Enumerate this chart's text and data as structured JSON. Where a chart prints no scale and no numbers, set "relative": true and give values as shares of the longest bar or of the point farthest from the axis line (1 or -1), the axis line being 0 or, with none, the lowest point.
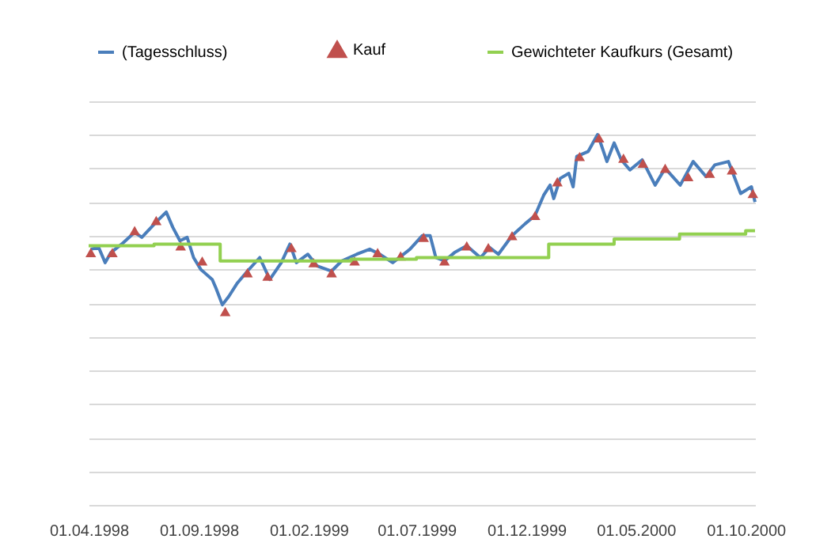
{
  "chart_data": {
    "type": "line",
    "relative": true,
    "grid": "y",
    "legend": "top",
    "xlim": [
      "1998-04-01",
      "2000-10-14"
    ],
    "xticks": [
      {
        "value": "1998-04-01",
        "label": "01.04.1998"
      },
      {
        "value": "1998-09-01",
        "label": "01.09.1998"
      },
      {
        "value": "1999-02-01",
        "label": "01.02.1999"
      },
      {
        "value": "1999-07-01",
        "label": "01.07.1999"
      },
      {
        "value": "1999-12-01",
        "label": "01.12.1999"
      },
      {
        "value": "2000-05-01",
        "label": "01.05.2000"
      },
      {
        "value": "2000-10-01",
        "label": "01.10.2000"
      }
    ],
    "series": [
      {
        "name": "(Tagesschluss)",
        "color": "#4a7ebb",
        "line_style": "solid",
        "marker": "none",
        "x": [
          "1998-04-04",
          "1998-04-15",
          "1998-04-24",
          "1998-05-02",
          "1998-05-17",
          "1998-06-04",
          "1998-06-14",
          "1998-07-06",
          "1998-07-18",
          "1998-07-27",
          "1998-08-06",
          "1998-08-16",
          "1998-08-25",
          "1998-09-04",
          "1998-09-20",
          "1998-09-25",
          "1998-10-04",
          "1998-10-13",
          "1998-10-25",
          "1998-11-08",
          "1998-11-25",
          "1998-12-09",
          "1998-12-25",
          "1999-01-06",
          "1999-01-15",
          "1999-01-31",
          "1999-02-13",
          "1999-03-05",
          "1999-03-19",
          "1999-04-09",
          "1999-04-27",
          "1999-05-11",
          "1999-05-29",
          "1999-06-22",
          "1999-07-09",
          "1999-07-20",
          "1999-07-28",
          "1999-08-09",
          "1999-08-23",
          "1999-09-09",
          "1999-09-28",
          "1999-10-11",
          "1999-10-23",
          "1999-11-11",
          "1999-11-29",
          "1999-12-13",
          "1999-12-25",
          "2000-01-03",
          "2000-01-08",
          "2000-01-17",
          "2000-01-29",
          "2000-02-04",
          "2000-02-09",
          "2000-02-25",
          "2000-03-09",
          "2000-03-14",
          "2000-03-22",
          "2000-04-01",
          "2000-04-11",
          "2000-04-23",
          "2000-05-10",
          "2000-05-28",
          "2000-06-11",
          "2000-07-02",
          "2000-07-20",
          "2000-08-07",
          "2000-08-19",
          "2000-09-07",
          "2000-09-24",
          "2000-10-09",
          "2000-10-14"
        ],
        "values": [
          0.66,
          0.665,
          0.62,
          0.65,
          0.675,
          0.71,
          0.695,
          0.745,
          0.77,
          0.725,
          0.685,
          0.695,
          0.635,
          0.6,
          0.57,
          0.545,
          0.495,
          0.52,
          0.56,
          0.595,
          0.635,
          0.57,
          0.62,
          0.675,
          0.62,
          0.645,
          0.61,
          0.595,
          0.625,
          0.645,
          0.66,
          0.645,
          0.62,
          0.66,
          0.7,
          0.7,
          0.635,
          0.625,
          0.65,
          0.67,
          0.635,
          0.665,
          0.645,
          0.7,
          0.735,
          0.76,
          0.82,
          0.85,
          0.81,
          0.87,
          0.885,
          0.845,
          0.935,
          0.95,
          1.0,
          0.97,
          0.92,
          0.975,
          0.925,
          0.895,
          0.925,
          0.85,
          0.9,
          0.85,
          0.92,
          0.875,
          0.91,
          0.92,
          0.825,
          0.845,
          0.8
        ]
      },
      {
        "name": "Kauf",
        "type": "scatter",
        "color": "#c0504d",
        "marker": "triangle",
        "x": [
          "1998-04-04",
          "1998-05-04",
          "1998-06-04",
          "1998-07-04",
          "1998-08-07",
          "1998-09-06",
          "1998-10-08",
          "1998-11-08",
          "1998-12-06",
          "1999-01-08",
          "1999-02-08",
          "1999-03-05",
          "1999-04-06",
          "1999-05-08",
          "1999-06-09",
          "1999-07-11",
          "1999-08-09",
          "1999-09-09",
          "1999-10-09",
          "1999-11-11",
          "1999-12-13",
          "2000-01-13",
          "2000-02-13",
          "2000-03-11",
          "2000-04-14",
          "2000-05-11",
          "2000-06-11",
          "2000-07-13",
          "2000-08-12",
          "2000-09-12",
          "2000-10-11"
        ],
        "values": [
          0.65,
          0.65,
          0.715,
          0.745,
          0.67,
          0.625,
          0.475,
          0.59,
          0.58,
          0.665,
          0.62,
          0.59,
          0.625,
          0.65,
          0.64,
          0.695,
          0.625,
          0.67,
          0.665,
          0.7,
          0.76,
          0.86,
          0.935,
          0.99,
          0.93,
          0.915,
          0.9,
          0.875,
          0.885,
          0.895,
          0.825
        ]
      },
      {
        "name": "Gewichteter Kaufkurs (Gesamt)",
        "type": "step",
        "color": "#92d050",
        "line_style": "solid",
        "marker": "none",
        "x": [
          "1998-04-01",
          "1998-07-01",
          "1998-10-01",
          "1999-04-01",
          "1999-07-01",
          "2000-01-01",
          "2000-04-01",
          "2000-07-01",
          "2000-10-01",
          "2000-10-14"
        ],
        "values": [
          0.67,
          0.675,
          0.625,
          0.63,
          0.635,
          0.675,
          0.69,
          0.705,
          0.715,
          0.715
        ]
      }
    ]
  }
}
